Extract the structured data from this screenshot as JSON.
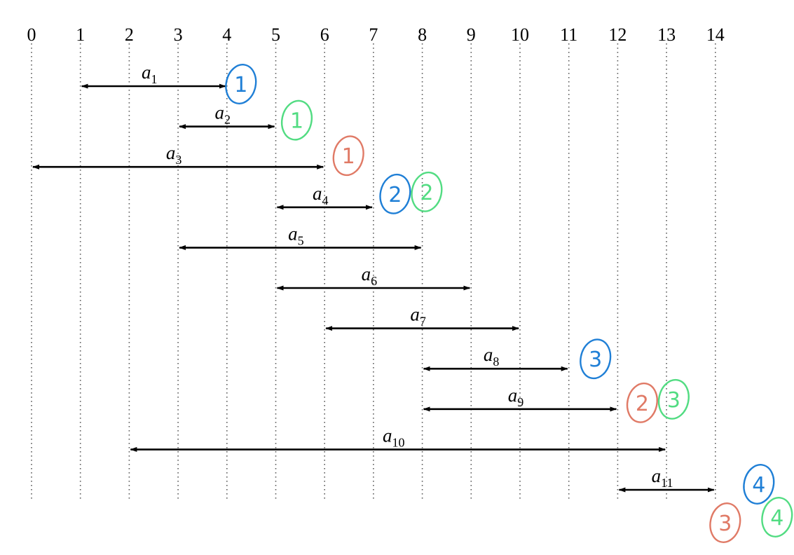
{
  "axis": {
    "ticks": [
      0,
      1,
      2,
      3,
      4,
      5,
      6,
      7,
      8,
      9,
      10,
      11,
      12,
      13,
      14
    ],
    "gridlines": "dotted"
  },
  "intervals": [
    {
      "letter": "a",
      "sub": "1",
      "start": 1,
      "end": 4
    },
    {
      "letter": "a",
      "sub": "2",
      "start": 3,
      "end": 5
    },
    {
      "letter": "a",
      "sub": "3",
      "start": 0,
      "end": 6
    },
    {
      "letter": "a",
      "sub": "4",
      "start": 5,
      "end": 7
    },
    {
      "letter": "a",
      "sub": "5",
      "start": 3,
      "end": 8
    },
    {
      "letter": "a",
      "sub": "6",
      "start": 5,
      "end": 9
    },
    {
      "letter": "a",
      "sub": "7",
      "start": 6,
      "end": 10
    },
    {
      "letter": "a",
      "sub": "8",
      "start": 8,
      "end": 11
    },
    {
      "letter": "a",
      "sub": "9",
      "start": 8,
      "end": 12
    },
    {
      "letter": "a",
      "sub": "10",
      "start": 2,
      "end": 13
    },
    {
      "letter": "a",
      "sub": "11",
      "start": 12,
      "end": 14
    }
  ],
  "colors": {
    "blue": "#1f7fd6",
    "green": "#52dc82",
    "red": "#e07a66",
    "line": "#000000"
  },
  "marks": [
    {
      "text": "1",
      "color": "blue",
      "interval": 1
    },
    {
      "text": "1",
      "color": "green",
      "interval": 2
    },
    {
      "text": "1",
      "color": "red",
      "interval": 3
    },
    {
      "text": "2",
      "color": "blue",
      "interval": 4
    },
    {
      "text": "2",
      "color": "green",
      "interval": 4
    },
    {
      "text": "3",
      "color": "blue",
      "interval": 8
    },
    {
      "text": "2",
      "color": "red",
      "interval": 9
    },
    {
      "text": "3",
      "color": "green",
      "interval": 9
    },
    {
      "text": "3",
      "color": "red",
      "interval": 11
    },
    {
      "text": "4",
      "color": "blue",
      "interval": 11
    },
    {
      "text": "4",
      "color": "green",
      "interval": 11
    }
  ]
}
